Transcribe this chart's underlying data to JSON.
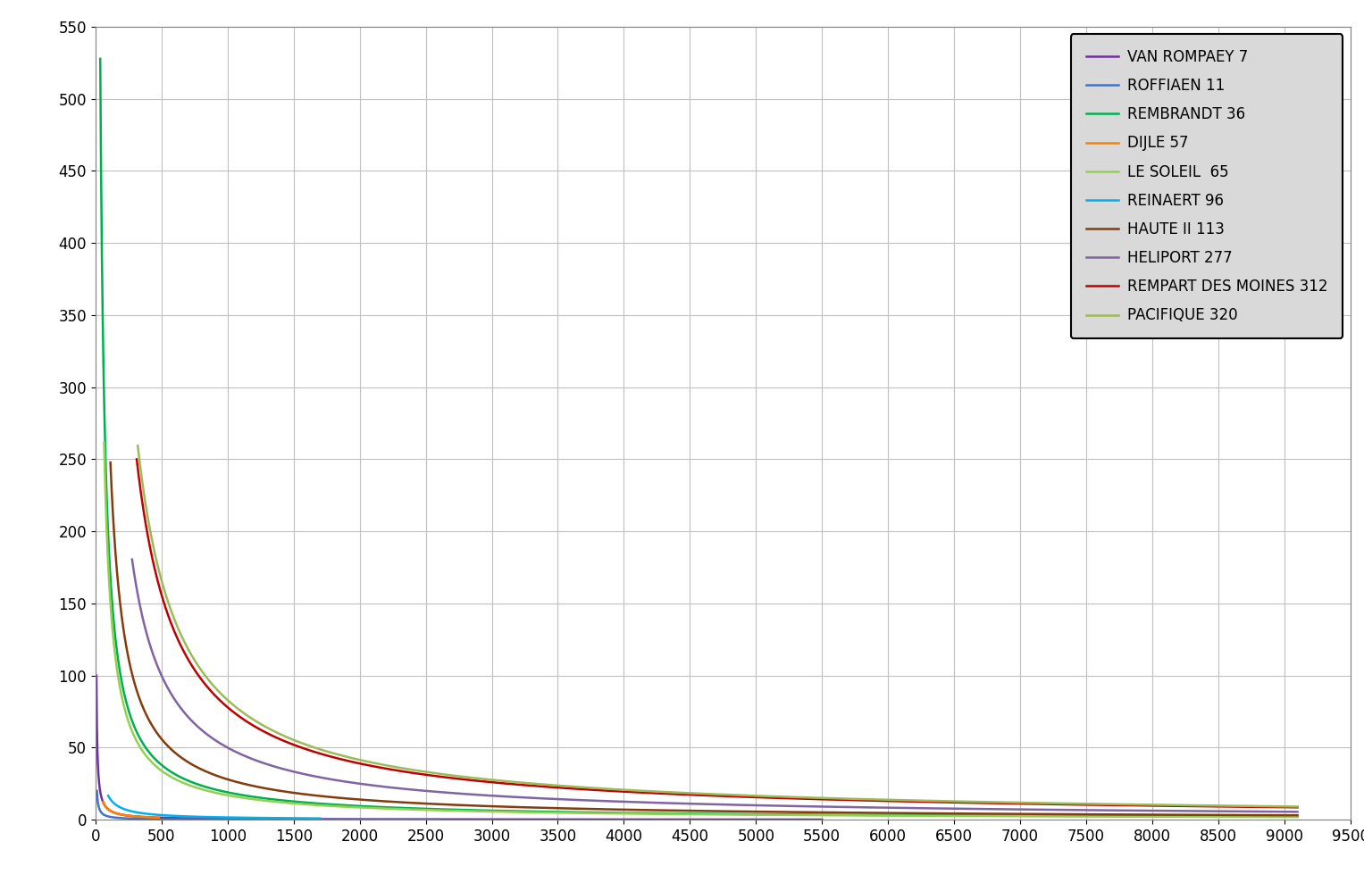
{
  "series": [
    {
      "label": "VAN ROMPAEY 7",
      "color": "#7030A0",
      "C": 700,
      "x_start": 7,
      "x_end": 5500
    },
    {
      "label": "ROFFIAEN 11",
      "color": "#4472C4",
      "C": 220,
      "x_start": 11,
      "x_end": 2600
    },
    {
      "label": "REMBRANDT 36",
      "color": "#00B050",
      "C": 19000,
      "x_start": 36,
      "x_end": 9100
    },
    {
      "label": "DIJLE 57",
      "color": "#FF8000",
      "C": 700,
      "x_start": 57,
      "x_end": 480
    },
    {
      "label": "LE SOLEIL  65",
      "color": "#92D050",
      "C": 17000,
      "x_start": 65,
      "x_end": 9100
    },
    {
      "label": "REINAERT 96",
      "color": "#00B0F0",
      "C": 1600,
      "x_start": 96,
      "x_end": 1700
    },
    {
      "label": "HAUTE II 113",
      "color": "#843C0C",
      "C": 28000,
      "x_start": 113,
      "x_end": 9100
    },
    {
      "label": "HELIPORT 277",
      "color": "#8064A2",
      "C": 50000,
      "x_start": 277,
      "x_end": 9100
    },
    {
      "label": "REMPART DES MOINES 312",
      "color": "#C00000",
      "C": 78000,
      "x_start": 312,
      "x_end": 9100
    },
    {
      "label": "PACIFIQUE 320",
      "color": "#9BBB59",
      "C": 83000,
      "x_start": 320,
      "x_end": 9100
    }
  ],
  "xlim": [
    0,
    9500
  ],
  "ylim": [
    0,
    550
  ],
  "background_color": "#FFFFFF",
  "grid_color": "#C0C0C0",
  "legend_facecolor": "#D9D9D9",
  "tick_fontsize": 12,
  "legend_fontsize": 12
}
